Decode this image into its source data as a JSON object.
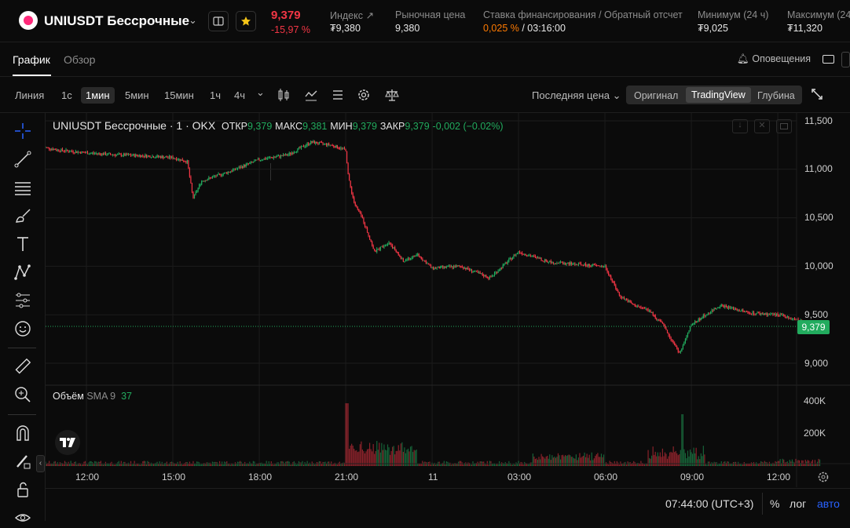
{
  "header": {
    "symbol": "UNIUSDT Бессрочные",
    "last_price": "9,379",
    "change_pct": "-15,97 %",
    "stats": [
      {
        "label": "Индекс",
        "value": "₮9,380"
      },
      {
        "label": "Рыночная цена",
        "value": "9,380"
      },
      {
        "label": "Ставка финансирования / Обратный отсчет",
        "value_a": "0,025 %",
        "value_b": "/ 03:16:00"
      },
      {
        "label": "Минимум (24 ч)",
        "value": "₮9,025"
      },
      {
        "label": "Максимум (24",
        "value": "₮11,320"
      }
    ]
  },
  "tabs": {
    "chart": "График",
    "overview": "Обзор",
    "alerts": "Оповещения"
  },
  "toolbar": {
    "intervals": [
      "Линия",
      "1с",
      "1мин",
      "5мин",
      "15мин",
      "1ч",
      "4ч"
    ],
    "selected_interval": "1мин",
    "price_type": "Последняя цена",
    "views": [
      "Оригинал",
      "TradingView",
      "Глубина"
    ],
    "selected_view": "TradingView"
  },
  "legend": {
    "title": "UNIUSDT Бессрочные · 1 · OKX",
    "open_label": "ОТКР",
    "open": "9,379",
    "high_label": "МАКС",
    "high": "9,381",
    "low_label": "МИН",
    "low": "9,379",
    "close_label": "ЗАКР",
    "close": "9,379",
    "change": "-0,002 (−0.02%)"
  },
  "volume_legend": {
    "label": "Объём",
    "sma": "SMA 9",
    "value": "37"
  },
  "price_axis": [
    "11,500",
    "11,000",
    "10,500",
    "10,000",
    "9,500",
    "9,000"
  ],
  "price_tag": "9,379",
  "volume_axis": [
    "400K",
    "200K"
  ],
  "time_axis": [
    "12:00",
    "15:00",
    "18:00",
    "21:00",
    "11",
    "03:00",
    "06:00",
    "09:00",
    "12:00"
  ],
  "footer": {
    "clock": "07:44:00 (UTC+3)",
    "percent": "%",
    "log": "лог",
    "auto": "авто"
  },
  "colors": {
    "up": "#22ab5e",
    "down": "#f23645",
    "accent": "#2962ff",
    "orange": "#ff7a00"
  },
  "chart_data": {
    "type": "line",
    "series": [
      {
        "name": "UNIUSDT Бессрочные",
        "x_hours": [
          10.5,
          11,
          12,
          13,
          14,
          15,
          15.5,
          15.7,
          16,
          17,
          18,
          19,
          19.8,
          20.5,
          21,
          21.1,
          21.3,
          21.6,
          22,
          22.5,
          23,
          23.5,
          24,
          25,
          26,
          27,
          28,
          29,
          30,
          30.5,
          31,
          31.5,
          32,
          32.6,
          33,
          33.5,
          34,
          35,
          36,
          36.5,
          37,
          37.5
        ],
        "values": [
          11230,
          11200,
          11170,
          11150,
          11140,
          11120,
          11080,
          10700,
          10880,
          10980,
          11100,
          11150,
          11280,
          11250,
          11200,
          10900,
          10650,
          10480,
          10150,
          10250,
          10050,
          10120,
          9980,
          10000,
          9880,
          10150,
          10050,
          10020,
          10000,
          9700,
          9600,
          9550,
          9400,
          9100,
          9400,
          9500,
          9600,
          9520,
          9500,
          9460,
          9420,
          9380
        ]
      }
    ],
    "y_range": [
      8870,
      11550
    ],
    "volume_peaks_k": {
      "21:00": 400,
      "04:30": 330
    }
  }
}
